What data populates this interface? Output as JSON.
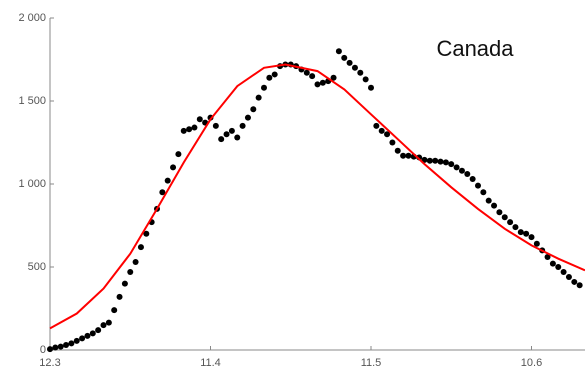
{
  "chart_data": {
    "type": "scatter",
    "annotation": "Canada",
    "xlim": [
      0,
      100
    ],
    "xticks": [
      {
        "value": 0,
        "label": "12.3"
      },
      {
        "value": 30,
        "label": "11.4"
      },
      {
        "value": 60,
        "label": "11.5"
      },
      {
        "value": 90,
        "label": "10.6"
      }
    ],
    "ylim": [
      0,
      2000
    ],
    "yticks": [
      0,
      500,
      {
        "value": 1000,
        "label": "1 000"
      },
      {
        "value": 1500,
        "label": "1 500"
      },
      {
        "value": 2000,
        "label": "2 000"
      }
    ],
    "series": [
      {
        "mark": "dot",
        "color": "#000000",
        "x": [
          0,
          1,
          2,
          3,
          4,
          5,
          6,
          7,
          8,
          9,
          10,
          11,
          12,
          13,
          14,
          15,
          16,
          17,
          18,
          19,
          20,
          21,
          22,
          23,
          24,
          25,
          26,
          27,
          28,
          29,
          30,
          31,
          32,
          33,
          34,
          35,
          36,
          37,
          38,
          39,
          40,
          41,
          42,
          43,
          44,
          45,
          46,
          47,
          48,
          49,
          50,
          51,
          52,
          53,
          54,
          55,
          56,
          57,
          58,
          59,
          60,
          61,
          62,
          63,
          64,
          65,
          66,
          67,
          68,
          69,
          70,
          71,
          72,
          73,
          74,
          75,
          76,
          77,
          78,
          79,
          80,
          81,
          82,
          83,
          84,
          85,
          86,
          87,
          88,
          89,
          90,
          91,
          92,
          93,
          94,
          95,
          96,
          97,
          98,
          99
        ],
        "values": [
          5,
          15,
          20,
          30,
          40,
          55,
          70,
          85,
          100,
          120,
          150,
          165,
          240,
          320,
          400,
          470,
          530,
          620,
          700,
          770,
          850,
          950,
          1020,
          1100,
          1180,
          1320,
          1330,
          1340,
          1390,
          1370,
          1400,
          1350,
          1270,
          1300,
          1320,
          1280,
          1350,
          1400,
          1450,
          1520,
          1580,
          1640,
          1660,
          1710,
          1720,
          1720,
          1710,
          1690,
          1670,
          1650,
          1600,
          1610,
          1620,
          1640,
          1800,
          1760,
          1730,
          1700,
          1670,
          1630,
          1580,
          1350,
          1320,
          1300,
          1250,
          1200,
          1170,
          1170,
          1165,
          1160,
          1145,
          1140,
          1140,
          1135,
          1130,
          1120,
          1100,
          1080,
          1060,
          1030,
          990,
          950,
          900,
          870,
          830,
          800,
          770,
          740,
          710,
          700,
          680,
          640,
          600,
          560,
          520,
          500,
          470,
          440,
          410,
          390
        ]
      },
      {
        "mark": "line",
        "color": "#ff0000",
        "x": [
          0,
          5,
          10,
          15,
          20,
          25,
          30,
          35,
          40,
          44,
          50,
          55,
          60,
          65,
          70,
          75,
          80,
          85,
          90,
          95,
          100
        ],
        "values": [
          130,
          220,
          370,
          580,
          850,
          1130,
          1390,
          1590,
          1700,
          1720,
          1680,
          1570,
          1420,
          1270,
          1120,
          980,
          850,
          730,
          630,
          550,
          480
        ]
      }
    ]
  }
}
